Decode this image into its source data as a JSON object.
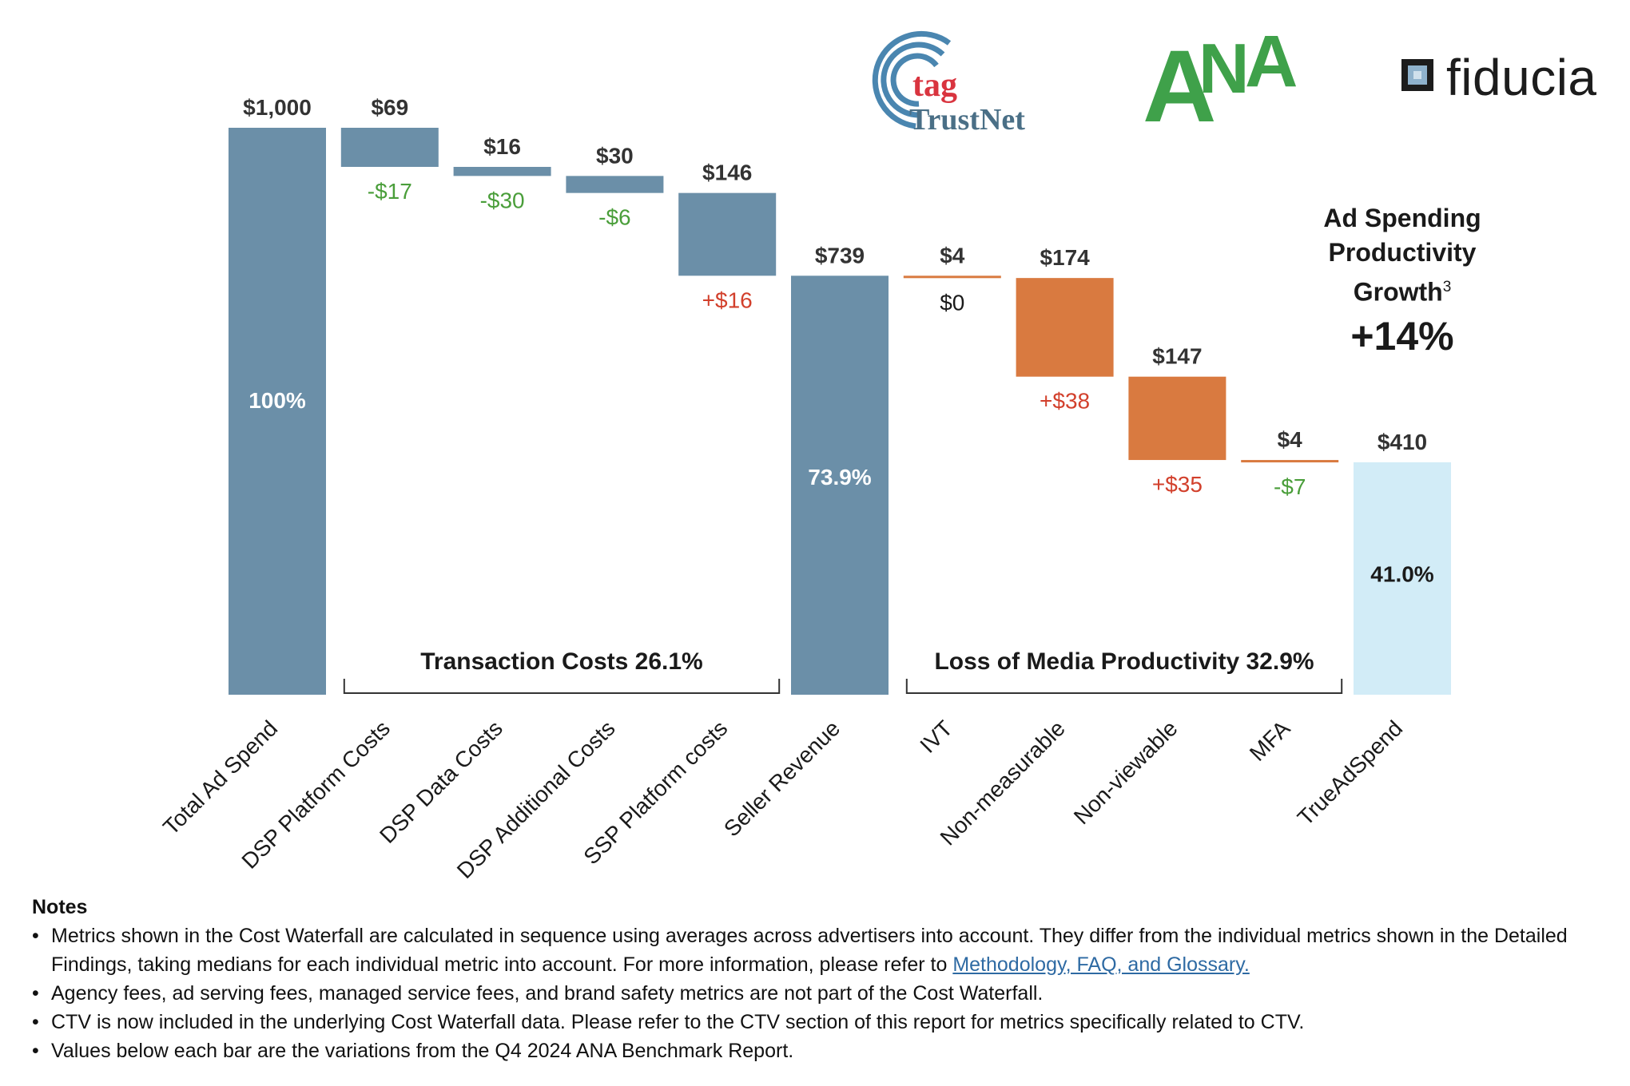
{
  "logos": {
    "tag_word": "tag",
    "trustnet_word": "TrustNet",
    "ana_word": "ANA",
    "fiducia_word": "fiducia"
  },
  "growth": {
    "title_line1": "Ad Spending",
    "title_line2": "Productivity",
    "title_line3": "Growth",
    "footnote_mark": "3",
    "value": "+14%"
  },
  "chart_data": {
    "type": "bar",
    "subtype": "waterfall",
    "ylim": [
      0,
      1000
    ],
    "categories": [
      "Total Ad Spend",
      "DSP Platform Costs",
      "DSP Data Costs",
      "DSP Additional Costs",
      "SSP Platform costs",
      "Seller Revenue",
      "IVT",
      "Non-measurable",
      "Non-viewable",
      "MFA",
      "TrueAdSpend"
    ],
    "bars": [
      {
        "category": "Total Ad Spend",
        "kind": "total",
        "base": 0,
        "top": 1000,
        "value_label": "$1,000",
        "inner_label": "100%",
        "variation": "",
        "color": "#6b8fa8"
      },
      {
        "category": "DSP Platform Costs",
        "kind": "step",
        "base": 931,
        "top": 1000,
        "value_label": "$69",
        "inner_label": "",
        "variation": "-$17",
        "color": "#6b8fa8"
      },
      {
        "category": "DSP Data Costs",
        "kind": "step",
        "base": 915,
        "top": 931,
        "value_label": "$16",
        "inner_label": "",
        "variation": "-$30",
        "color": "#6b8fa8"
      },
      {
        "category": "DSP Additional Costs",
        "kind": "step",
        "base": 885,
        "top": 915,
        "value_label": "$30",
        "inner_label": "",
        "variation": "-$6",
        "color": "#6b8fa8"
      },
      {
        "category": "SSP Platform costs",
        "kind": "step",
        "base": 739,
        "top": 885,
        "value_label": "$146",
        "inner_label": "",
        "variation": "+$16",
        "color": "#6b8fa8"
      },
      {
        "category": "Seller Revenue",
        "kind": "total",
        "base": 0,
        "top": 739,
        "value_label": "$739",
        "inner_label": "73.9%",
        "variation": "",
        "color": "#6b8fa8"
      },
      {
        "category": "IVT",
        "kind": "step",
        "base": 735,
        "top": 739,
        "value_label": "$4",
        "inner_label": "",
        "variation": "$0",
        "color": "#d97a40"
      },
      {
        "category": "Non-measurable",
        "kind": "step",
        "base": 561,
        "top": 735,
        "value_label": "$174",
        "inner_label": "",
        "variation": "+$38",
        "color": "#d97a40"
      },
      {
        "category": "Non-viewable",
        "kind": "step",
        "base": 414,
        "top": 561,
        "value_label": "$147",
        "inner_label": "",
        "variation": "+$35",
        "color": "#d97a40"
      },
      {
        "category": "MFA",
        "kind": "step",
        "base": 410,
        "top": 414,
        "value_label": "$4",
        "inner_label": "",
        "variation": "-$7",
        "color": "#d97a40"
      },
      {
        "category": "TrueAdSpend",
        "kind": "total",
        "base": 0,
        "top": 410,
        "value_label": "$410",
        "inner_label": "41.0%",
        "variation": "",
        "color": "#d2ecf7"
      }
    ],
    "brackets": [
      {
        "label": "Transaction Costs 26.1%",
        "from": 1,
        "to": 4
      },
      {
        "label": "Loss of Media Productivity 32.9%",
        "from": 6,
        "to": 9
      }
    ]
  },
  "notes": {
    "title": "Notes",
    "items": [
      {
        "text": "Metrics shown in the Cost Waterfall are calculated in sequence using averages across advertisers into account. They differ from the individual metrics shown in the Detailed Findings, taking medians for each individual metric into account. For more information, please refer to ",
        "link": "Methodology, FAQ, and Glossary."
      },
      {
        "text": "Agency fees, ad serving fees, managed service fees, and brand safety metrics are not part of the Cost Waterfall.",
        "link": ""
      },
      {
        "text": "CTV is now included in the underlying Cost Waterfall data. Please refer to the CTV section of this report for metrics specifically related to CTV.",
        "link": ""
      },
      {
        "text": "Values below each bar are the variations from the Q4 2024 ANA Benchmark Report.",
        "link": ""
      }
    ]
  }
}
